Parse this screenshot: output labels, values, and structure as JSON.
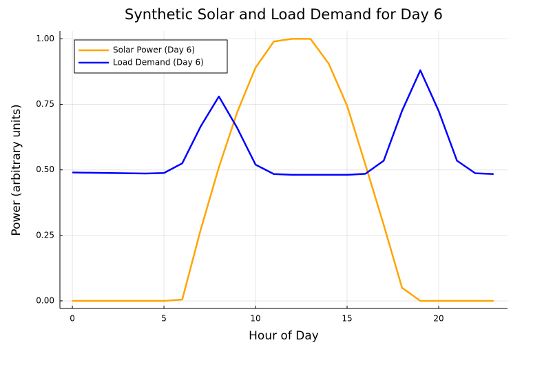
{
  "chart_data": {
    "type": "line",
    "title": "Synthetic Solar and Load Demand for Day 6",
    "x_label": "Hour of Day",
    "y_label": "Power (arbitrary units)",
    "x": [
      0,
      1,
      2,
      3,
      4,
      5,
      6,
      7,
      8,
      9,
      10,
      11,
      12,
      13,
      14,
      15,
      16,
      17,
      18,
      19,
      20,
      21,
      22,
      23
    ],
    "series": [
      {
        "name": "Solar Power (Day 6)",
        "color": "#ffa500",
        "values": [
          0,
          0,
          0,
          0,
          0,
          0,
          0.005,
          0.27,
          0.51,
          0.72,
          0.89,
          0.99,
          1.0,
          1.0,
          0.905,
          0.745,
          0.52,
          0.29,
          0.05,
          0,
          0,
          0,
          0,
          0
        ]
      },
      {
        "name": "Load Demand (Day 6)",
        "color": "#0000ff",
        "values": [
          0.49,
          0.489,
          0.488,
          0.487,
          0.486,
          0.488,
          0.525,
          0.665,
          0.78,
          0.66,
          0.52,
          0.484,
          0.481,
          0.481,
          0.481,
          0.481,
          0.485,
          0.535,
          0.725,
          0.88,
          0.725,
          0.535,
          0.487,
          0.484
        ]
      }
    ],
    "xlim": [
      -0.68,
      23.76
    ],
    "ylim": [
      -0.029,
      1.03
    ],
    "xticks": [
      0,
      5,
      10,
      15,
      20
    ],
    "yticks": [
      {
        "value": 0,
        "label": "0.00"
      },
      {
        "value": 0.25,
        "label": "0.25"
      },
      {
        "value": 0.5,
        "label": "0.50"
      },
      {
        "value": 0.75,
        "label": "0.75"
      },
      {
        "value": 1,
        "label": "1.00"
      }
    ],
    "grid": true,
    "legend": "top-left"
  }
}
